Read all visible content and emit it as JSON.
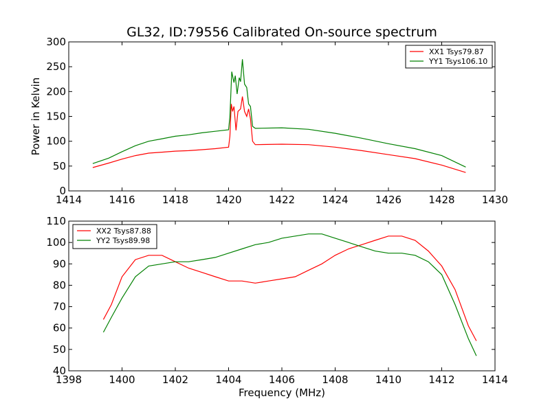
{
  "title": "GL32, ID:79556 Calibrated On-source spectrum",
  "colors": {
    "xx": "#ff0000",
    "yy": "#008000"
  },
  "chart_data": [
    {
      "type": "line",
      "ylabel": "Power in Kelvin",
      "xlabel": "",
      "xlim": [
        1414,
        1430
      ],
      "ylim": [
        0,
        300
      ],
      "xticks": [
        "1414",
        "1416",
        "1418",
        "1420",
        "1422",
        "1424",
        "1426",
        "1428",
        "1430"
      ],
      "yticks": [
        "0",
        "50",
        "100",
        "150",
        "200",
        "250",
        "300"
      ],
      "legend": {
        "placement": "top-right"
      },
      "series": [
        {
          "name": "XX1 Tsys79.87",
          "color": "#ff0000",
          "points": [
            [
              1414.9,
              47
            ],
            [
              1415.5,
              56
            ],
            [
              1416.0,
              64
            ],
            [
              1416.5,
              71
            ],
            [
              1417.0,
              76
            ],
            [
              1417.5,
              78
            ],
            [
              1418.0,
              80
            ],
            [
              1418.5,
              81
            ],
            [
              1419.0,
              83
            ],
            [
              1419.5,
              85
            ],
            [
              1420.0,
              88
            ],
            [
              1420.05,
              110
            ],
            [
              1420.1,
              175
            ],
            [
              1420.15,
              160
            ],
            [
              1420.2,
              170
            ],
            [
              1420.28,
              122
            ],
            [
              1420.35,
              160
            ],
            [
              1420.45,
              165
            ],
            [
              1420.52,
              190
            ],
            [
              1420.6,
              160
            ],
            [
              1420.68,
              150
            ],
            [
              1420.75,
              165
            ],
            [
              1420.82,
              145
            ],
            [
              1420.9,
              100
            ],
            [
              1421.0,
              93
            ],
            [
              1422.0,
              94
            ],
            [
              1423.0,
              93
            ],
            [
              1424.0,
              88
            ],
            [
              1425.0,
              81
            ],
            [
              1426.0,
              73
            ],
            [
              1427.0,
              65
            ],
            [
              1428.0,
              52
            ],
            [
              1428.9,
              37
            ]
          ]
        },
        {
          "name": "YY1 Tsys106.10",
          "color": "#008000",
          "points": [
            [
              1414.9,
              55
            ],
            [
              1415.5,
              66
            ],
            [
              1416.0,
              79
            ],
            [
              1416.5,
              91
            ],
            [
              1417.0,
              100
            ],
            [
              1417.5,
              105
            ],
            [
              1418.0,
              110
            ],
            [
              1418.5,
              113
            ],
            [
              1419.0,
              117
            ],
            [
              1419.5,
              120
            ],
            [
              1420.0,
              123
            ],
            [
              1420.05,
              150
            ],
            [
              1420.12,
              240
            ],
            [
              1420.2,
              218
            ],
            [
              1420.25,
              232
            ],
            [
              1420.32,
              195
            ],
            [
              1420.4,
              228
            ],
            [
              1420.45,
              220
            ],
            [
              1420.52,
              265
            ],
            [
              1420.6,
              215
            ],
            [
              1420.68,
              208
            ],
            [
              1420.75,
              175
            ],
            [
              1420.82,
              170
            ],
            [
              1420.9,
              130
            ],
            [
              1421.0,
              126
            ],
            [
              1422.0,
              127
            ],
            [
              1423.0,
              124
            ],
            [
              1424.0,
              116
            ],
            [
              1425.0,
              106
            ],
            [
              1426.0,
              95
            ],
            [
              1427.0,
              85
            ],
            [
              1428.0,
              71
            ],
            [
              1428.9,
              48
            ]
          ]
        }
      ]
    },
    {
      "type": "line",
      "ylabel": "",
      "xlabel": "Frequency (MHz)",
      "xlim": [
        1398,
        1414
      ],
      "ylim": [
        40,
        110
      ],
      "xticks": [
        "1398",
        "1400",
        "1402",
        "1404",
        "1406",
        "1408",
        "1410",
        "1412",
        "1414"
      ],
      "yticks": [
        "40",
        "50",
        "60",
        "70",
        "80",
        "90",
        "100",
        "110"
      ],
      "legend": {
        "placement": "top-left"
      },
      "series": [
        {
          "name": "XX2 Tsys87.88",
          "color": "#ff0000",
          "points": [
            [
              1399.3,
              64
            ],
            [
              1399.6,
              71
            ],
            [
              1400.0,
              84
            ],
            [
              1400.5,
              92
            ],
            [
              1401.0,
              94
            ],
            [
              1401.5,
              94
            ],
            [
              1402.0,
              91
            ],
            [
              1402.5,
              88
            ],
            [
              1403.0,
              86
            ],
            [
              1403.5,
              84
            ],
            [
              1404.0,
              82
            ],
            [
              1404.5,
              82
            ],
            [
              1405.0,
              81
            ],
            [
              1405.5,
              82
            ],
            [
              1406.0,
              83
            ],
            [
              1406.5,
              84
            ],
            [
              1407.0,
              87
            ],
            [
              1407.5,
              90
            ],
            [
              1408.0,
              94
            ],
            [
              1408.5,
              97
            ],
            [
              1409.0,
              99
            ],
            [
              1409.5,
              101
            ],
            [
              1410.0,
              103
            ],
            [
              1410.5,
              103
            ],
            [
              1411.0,
              101
            ],
            [
              1411.5,
              96
            ],
            [
              1412.0,
              89
            ],
            [
              1412.5,
              78
            ],
            [
              1413.0,
              61
            ],
            [
              1413.3,
              54
            ]
          ]
        },
        {
          "name": "YY2 Tsys89.98",
          "color": "#008000",
          "points": [
            [
              1399.3,
              58
            ],
            [
              1399.6,
              65
            ],
            [
              1400.0,
              74
            ],
            [
              1400.5,
              84
            ],
            [
              1401.0,
              89
            ],
            [
              1401.5,
              90
            ],
            [
              1402.0,
              91
            ],
            [
              1402.5,
              91
            ],
            [
              1403.0,
              92
            ],
            [
              1403.5,
              93
            ],
            [
              1404.0,
              95
            ],
            [
              1404.5,
              97
            ],
            [
              1405.0,
              99
            ],
            [
              1405.5,
              100
            ],
            [
              1406.0,
              102
            ],
            [
              1406.5,
              103
            ],
            [
              1407.0,
              104
            ],
            [
              1407.5,
              104
            ],
            [
              1408.0,
              102
            ],
            [
              1408.5,
              100
            ],
            [
              1409.0,
              98
            ],
            [
              1409.5,
              96
            ],
            [
              1410.0,
              95
            ],
            [
              1410.5,
              95
            ],
            [
              1411.0,
              94
            ],
            [
              1411.5,
              91
            ],
            [
              1412.0,
              85
            ],
            [
              1412.5,
              71
            ],
            [
              1413.0,
              55
            ],
            [
              1413.3,
              47
            ]
          ]
        }
      ]
    }
  ]
}
